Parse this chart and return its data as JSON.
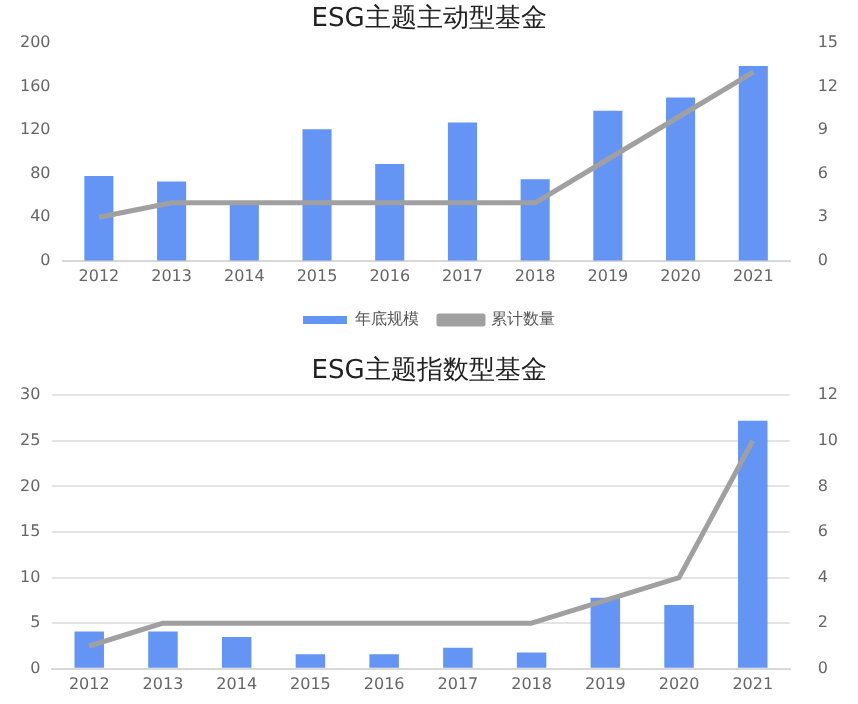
{
  "chart_data": [
    {
      "type": "bar",
      "title": "ESG主题主动型基金",
      "categories": [
        "2012",
        "2013",
        "2014",
        "2015",
        "2016",
        "2017",
        "2018",
        "2019",
        "2020",
        "2021"
      ],
      "series": [
        {
          "name": "年底规模",
          "color": "#6495f5",
          "values": [
            78,
            73,
            54,
            121,
            89,
            127,
            75,
            138,
            150,
            179
          ]
        },
        {
          "name": "累计数量",
          "type": "line",
          "axis": "y2",
          "color": "#a0a0a0",
          "values": [
            3,
            4,
            4,
            4,
            4,
            4,
            4,
            7,
            10,
            13
          ]
        }
      ],
      "ylim": [
        0,
        200
      ],
      "yticks": [
        0,
        40,
        80,
        120,
        160,
        200
      ],
      "y2lim": [
        0,
        15
      ],
      "y2ticks": [
        0,
        3,
        6,
        9,
        12,
        15
      ],
      "grid": false,
      "legend": "bottom",
      "marker": "none"
    },
    {
      "type": "bar",
      "title": "ESG主题指数型基金",
      "categories": [
        "2012",
        "2013",
        "2014",
        "2015",
        "2016",
        "2017",
        "2018",
        "2019",
        "2020",
        "2021"
      ],
      "series": [
        {
          "color": "#6495f5",
          "values": [
            4.1,
            4.1,
            3.5,
            1.6,
            1.6,
            2.3,
            1.8,
            7.8,
            7.0,
            27.2
          ]
        },
        {
          "type": "line",
          "axis": "y2",
          "color": "#a0a0a0",
          "values": [
            1,
            2,
            2,
            2,
            2,
            2,
            2,
            3,
            4,
            10
          ]
        }
      ],
      "ylim": [
        0,
        30
      ],
      "yticks": [
        0,
        5,
        10,
        15,
        20,
        25,
        30
      ],
      "y2lim": [
        0,
        12
      ],
      "y2ticks": [
        0,
        2,
        4,
        6,
        8,
        10,
        12
      ],
      "grid": "y",
      "legend": false,
      "marker": "none"
    }
  ]
}
